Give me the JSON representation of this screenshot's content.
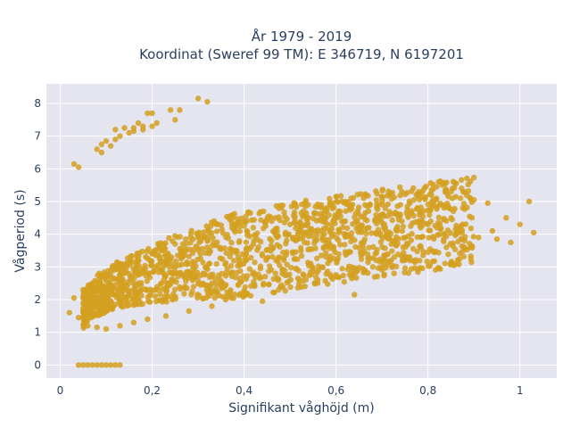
{
  "chart_data": {
    "type": "scatter",
    "title_line1": "År 1979 - 2019",
    "title_line2": "Koordinat (Sweref 99 TM): E 346719, N 6197201",
    "xlabel": "Signifikant våghöjd (m)",
    "ylabel": "Vågperiod (s)",
    "xlim": [
      -0.03,
      1.08
    ],
    "ylim": [
      -0.4,
      8.6
    ],
    "x_ticks": [
      0,
      0.2,
      0.4,
      0.6,
      0.8,
      1
    ],
    "x_tick_labels": [
      "0",
      "0,2",
      "0,4",
      "0,6",
      "0,8",
      "1"
    ],
    "y_ticks": [
      0,
      1,
      2,
      3,
      4,
      5,
      6,
      7,
      8
    ],
    "y_tick_labels": [
      "0",
      "1",
      "2",
      "3",
      "4",
      "5",
      "6",
      "7",
      "8"
    ],
    "grid": true,
    "legend": "none",
    "colors": {
      "marker": "#d4a020",
      "plot_bg": "#e5e5f0",
      "grid": "#ffffff",
      "text": "#2a3f5f"
    },
    "series": [
      {
        "points": [
          [
            0.03,
            6.15
          ],
          [
            0.04,
            6.05
          ],
          [
            0.08,
            6.6
          ],
          [
            0.09,
            6.75
          ],
          [
            0.09,
            6.5
          ],
          [
            0.1,
            6.85
          ],
          [
            0.11,
            6.7
          ],
          [
            0.12,
            6.9
          ],
          [
            0.12,
            7.2
          ],
          [
            0.13,
            7.0
          ],
          [
            0.14,
            7.25
          ],
          [
            0.15,
            7.1
          ],
          [
            0.16,
            7.15
          ],
          [
            0.16,
            7.25
          ],
          [
            0.17,
            7.4
          ],
          [
            0.18,
            7.2
          ],
          [
            0.18,
            7.3
          ],
          [
            0.19,
            7.7
          ],
          [
            0.2,
            7.3
          ],
          [
            0.2,
            7.7
          ],
          [
            0.21,
            7.4
          ],
          [
            0.24,
            7.8
          ],
          [
            0.25,
            7.5
          ],
          [
            0.26,
            7.8
          ],
          [
            0.3,
            8.15
          ],
          [
            0.32,
            8.05
          ],
          [
            0.02,
            1.6
          ],
          [
            0.03,
            2.05
          ],
          [
            0.04,
            1.45
          ],
          [
            0.05,
            2.3
          ],
          [
            0.06,
            1.2
          ],
          [
            0.07,
            2.5
          ],
          [
            0.08,
            1.15
          ],
          [
            0.09,
            2.7
          ],
          [
            0.1,
            1.1
          ],
          [
            0.11,
            2.8
          ],
          [
            0.13,
            1.2
          ],
          [
            0.14,
            3.0
          ],
          [
            0.16,
            1.3
          ],
          [
            0.17,
            3.2
          ],
          [
            0.19,
            1.4
          ],
          [
            0.2,
            3.4
          ],
          [
            0.23,
            1.5
          ],
          [
            0.25,
            3.7
          ],
          [
            0.28,
            1.65
          ],
          [
            0.3,
            3.9
          ],
          [
            0.33,
            1.8
          ],
          [
            0.34,
            4.3
          ],
          [
            0.36,
            2.0
          ],
          [
            0.38,
            4.3
          ],
          [
            0.4,
            2.2
          ],
          [
            0.42,
            4.2
          ],
          [
            0.44,
            1.95
          ],
          [
            0.46,
            4.4
          ],
          [
            0.48,
            2.4
          ],
          [
            0.5,
            4.3
          ],
          [
            0.52,
            2.6
          ],
          [
            0.54,
            4.5
          ],
          [
            0.56,
            2.5
          ],
          [
            0.58,
            4.8
          ],
          [
            0.6,
            2.7
          ],
          [
            0.62,
            4.4
          ],
          [
            0.64,
            2.15
          ],
          [
            0.66,
            5.1
          ],
          [
            0.68,
            3.0
          ],
          [
            0.7,
            4.6
          ],
          [
            0.72,
            3.2
          ],
          [
            0.74,
            4.9
          ],
          [
            0.76,
            3.3
          ],
          [
            0.78,
            4.4
          ],
          [
            0.8,
            3.45
          ],
          [
            0.82,
            4.2
          ],
          [
            0.84,
            3.6
          ],
          [
            0.86,
            4.15
          ],
          [
            0.88,
            3.8
          ],
          [
            0.9,
            5.05
          ],
          [
            0.91,
            3.9
          ],
          [
            0.93,
            4.95
          ],
          [
            0.95,
            3.85
          ],
          [
            0.97,
            4.5
          ],
          [
            1.0,
            4.3
          ],
          [
            1.02,
            5.0
          ],
          [
            1.03,
            4.05
          ],
          [
            0.94,
            4.1
          ],
          [
            0.98,
            3.75
          ],
          [
            0.85,
            4.5
          ],
          [
            0.8,
            4.3
          ],
          [
            0.75,
            3.9
          ],
          [
            0.04,
            0.0
          ],
          [
            0.05,
            0.0
          ],
          [
            0.06,
            0.0
          ],
          [
            0.07,
            0.0
          ],
          [
            0.08,
            0.0
          ],
          [
            0.09,
            0.0
          ],
          [
            0.1,
            0.0
          ],
          [
            0.11,
            0.0
          ],
          [
            0.12,
            0.0
          ],
          [
            0.13,
            0.0
          ]
        ]
      }
    ]
  }
}
